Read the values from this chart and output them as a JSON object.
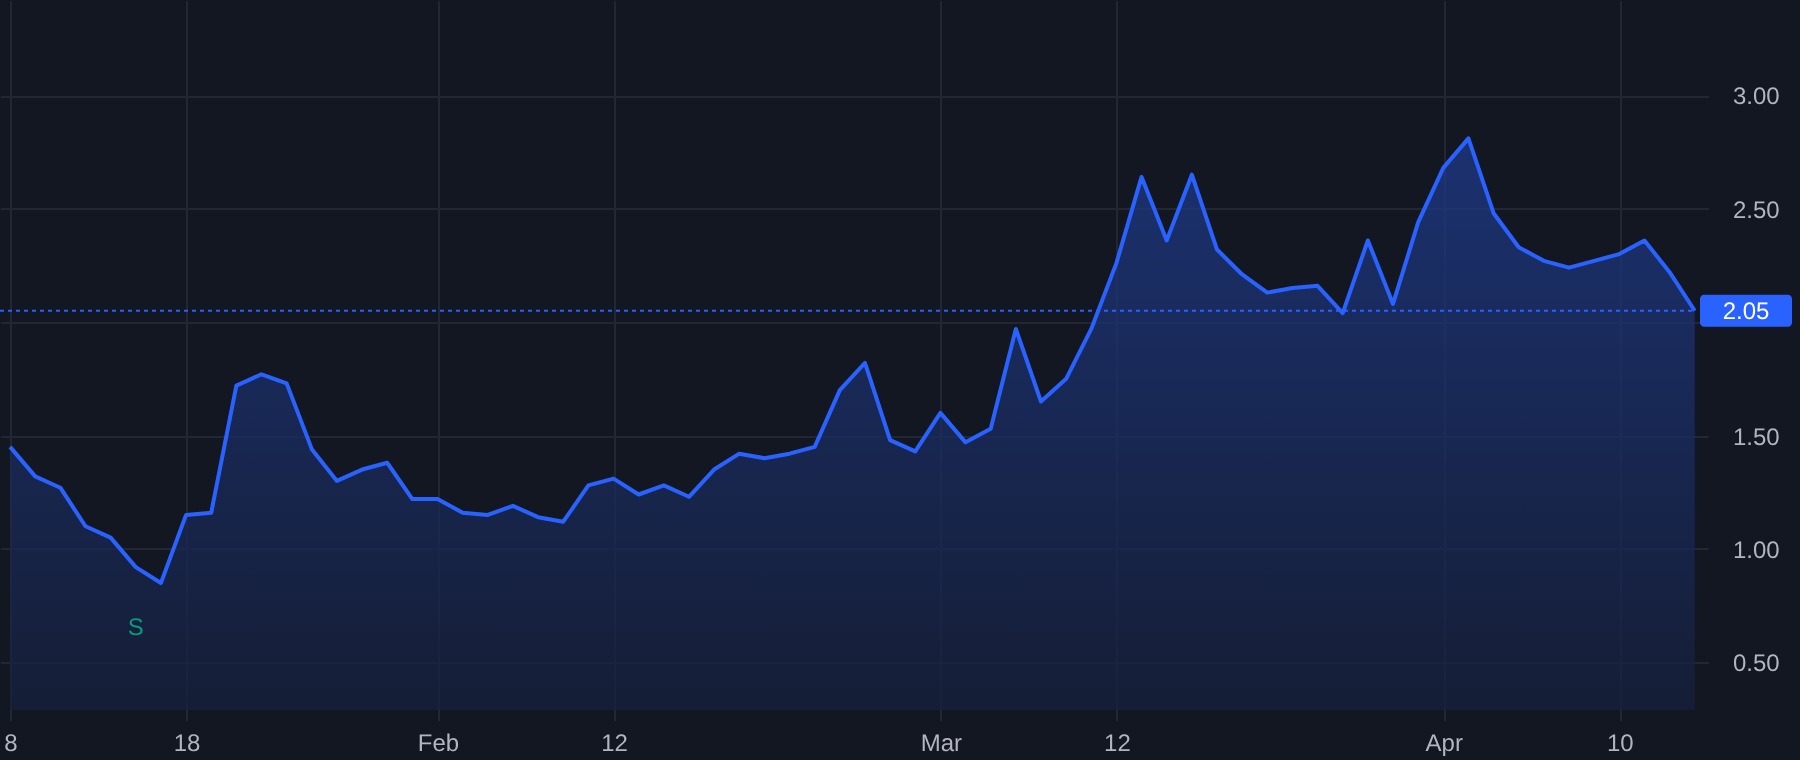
{
  "chart_data": {
    "type": "area",
    "categories": [
      "8",
      null,
      null,
      null,
      null,
      null,
      null,
      "18",
      null,
      null,
      null,
      null,
      null,
      null,
      null,
      null,
      null,
      "Feb",
      null,
      null,
      null,
      null,
      null,
      null,
      "12",
      null,
      null,
      null,
      null,
      null,
      null,
      null,
      null,
      null,
      null,
      null,
      null,
      "Mar",
      null,
      null,
      null,
      null,
      null,
      null,
      "12",
      null,
      null,
      null,
      null,
      null,
      null,
      null,
      null,
      null,
      null,
      null,
      null,
      "Apr",
      null,
      null,
      null,
      null,
      null,
      null,
      "10",
      null,
      null,
      null
    ],
    "series": [
      {
        "color": "#2962ff",
        "values": [
          1.45,
          1.32,
          1.27,
          1.1,
          1.05,
          0.92,
          0.85,
          1.15,
          1.16,
          1.72,
          1.77,
          1.73,
          1.44,
          1.3,
          1.35,
          1.38,
          1.22,
          1.22,
          1.16,
          1.15,
          1.19,
          1.14,
          1.12,
          1.28,
          1.31,
          1.24,
          1.28,
          1.23,
          1.35,
          1.42,
          1.4,
          1.42,
          1.45,
          1.7,
          1.82,
          1.48,
          1.43,
          1.6,
          1.47,
          1.53,
          1.97,
          1.65,
          1.75,
          1.97,
          2.26,
          2.64,
          2.36,
          2.65,
          2.32,
          2.21,
          2.13,
          2.15,
          2.16,
          2.04,
          2.36,
          2.08,
          2.44,
          2.68,
          2.81,
          2.48,
          2.33,
          2.27,
          2.24,
          2.27,
          2.3,
          2.36,
          2.22,
          2.05
        ]
      }
    ],
    "ylim": [
      0.29,
      3.42
    ],
    "yticks": [
      {
        "value": 0.5,
        "label": "0.50"
      },
      {
        "value": 1,
        "label": "1.00"
      },
      {
        "value": 1.5,
        "label": "1.50"
      },
      {
        "value": 2,
        "label": null
      },
      {
        "value": 2.5,
        "label": "2.50"
      },
      {
        "value": 3,
        "label": "3.00"
      }
    ],
    "ref_lines": [
      {
        "axis": "y",
        "value": 2.05,
        "label": "2.05",
        "color": "#2962ff",
        "line_style": "dotted"
      }
    ],
    "annotations": [
      "S"
    ],
    "grid": true,
    "marker": "none",
    "line_style": "solid"
  }
}
